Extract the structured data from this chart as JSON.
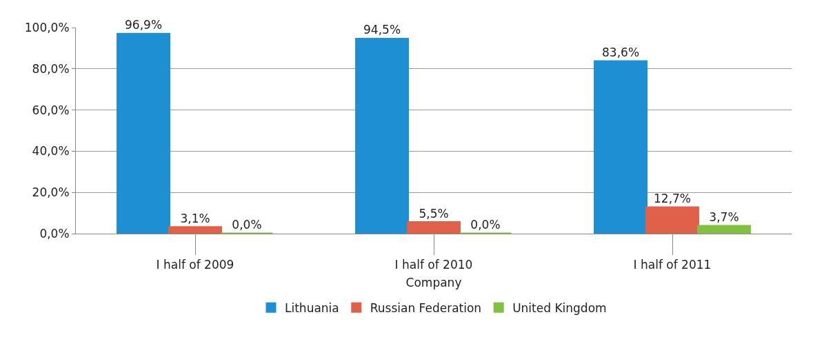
{
  "chart_data": {
    "type": "bar",
    "xlabel": "Company",
    "categories": [
      "I half of 2009",
      "I half of 2010",
      "I half of 2011"
    ],
    "series": [
      {
        "name": "Lithuania",
        "color": "#1e8fd2",
        "values": [
          96.9,
          94.5,
          83.6
        ],
        "value_labels": [
          "96,9%",
          "94,5%",
          "83,6%"
        ]
      },
      {
        "name": "Russian Federation",
        "color": "#e0604a",
        "values": [
          3.1,
          5.5,
          12.7
        ],
        "value_labels": [
          "3,1%",
          "5,5%",
          "12,7%"
        ]
      },
      {
        "name": "United Kingdom",
        "color": "#82c041",
        "values": [
          0.0,
          0.0,
          3.7
        ],
        "value_labels": [
          "0,0%",
          "0,0%",
          "3,7%"
        ]
      }
    ],
    "ylim": [
      0,
      100
    ],
    "yticks": [
      {
        "value": 0,
        "label": "0,0%"
      },
      {
        "value": 20,
        "label": "20,0%"
      },
      {
        "value": 40,
        "label": "40,0%"
      },
      {
        "value": 60,
        "label": "60,0%"
      },
      {
        "value": 80,
        "label": "80,0%"
      },
      {
        "value": 100,
        "label": "100,0%"
      }
    ],
    "grid": "y",
    "legend": "bottom"
  }
}
